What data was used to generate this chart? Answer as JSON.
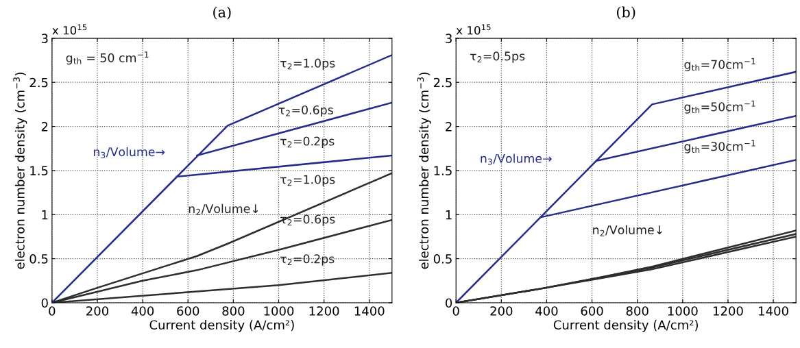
{
  "chart_data": [
    {
      "type": "line",
      "title": "(a)",
      "xlabel": "Current density (A/cm²)",
      "ylabel": "electron number density (cm$^{−3}$)",
      "xlim": [
        0,
        1500
      ],
      "xticks": [
        0,
        200,
        400,
        600,
        800,
        1000,
        1200,
        1400
      ],
      "ylim": [
        0,
        3
      ],
      "yticks": [
        0,
        0.5,
        1,
        1.5,
        2,
        2.5,
        3
      ],
      "grid": true,
      "line_style": "solid",
      "marker": "none",
      "series": [
        {
          "color": "#232c8c",
          "x": [
            0,
            775,
            1500
          ],
          "values": [
            0,
            2.01,
            2.81
          ]
        },
        {
          "color": "#232c8c",
          "x": [
            640,
            1500
          ],
          "values": [
            1.67,
            2.27
          ]
        },
        {
          "color": "#232c8c",
          "x": [
            550,
            1500
          ],
          "values": [
            1.43,
            1.67
          ]
        },
        {
          "color": "#2b2e2b",
          "x": [
            0,
            200,
            640,
            775,
            1500
          ],
          "values": [
            0,
            0.17,
            0.53,
            0.67,
            1.47
          ]
        },
        {
          "color": "#2b2e2b",
          "x": [
            0,
            400,
            640,
            1000,
            1500
          ],
          "values": [
            0,
            0.25,
            0.37,
            0.6,
            0.94
          ]
        },
        {
          "color": "#2b2e2b",
          "x": [
            0,
            550,
            1000,
            1500
          ],
          "values": [
            0,
            0.11,
            0.2,
            0.34
          ]
        }
      ],
      "annotations": [
        "x 10$^{15}$",
        "g$_{th}$ = 50 cm$^{−1}$",
        "τ$_{2}$=1.0ps",
        "τ$_{2}$=0.6ps",
        "τ$_{2}$=0.2ps",
        "τ$_{2}$=1.0ps",
        "τ$_{2}$=0.6ps",
        "τ$_{2}$=0.2ps",
        "n$_{3}$/Volume→",
        "n$_{2}$/Volume↓"
      ]
    },
    {
      "type": "line",
      "title": "(b)",
      "xlabel": "Current density (A/cm²)",
      "ylabel": "electron number density (cm$^{−3}$)",
      "xlim": [
        0,
        1500
      ],
      "xticks": [
        0,
        200,
        400,
        600,
        800,
        1000,
        1200,
        1400
      ],
      "ylim": [
        0,
        3
      ],
      "yticks": [
        0,
        0.5,
        1,
        1.5,
        2,
        2.5,
        3
      ],
      "grid": true,
      "line_style": "solid",
      "marker": "none",
      "series": [
        {
          "color": "#232c8c",
          "x": [
            0,
            865,
            1500
          ],
          "values": [
            0,
            2.25,
            2.62
          ]
        },
        {
          "color": "#232c8c",
          "x": [
            620,
            1500
          ],
          "values": [
            1.61,
            2.12
          ]
        },
        {
          "color": "#232c8c",
          "x": [
            375,
            1500
          ],
          "values": [
            0.97,
            1.62
          ]
        },
        {
          "color": "#2b2e2b",
          "x": [
            0,
            375,
            620,
            865,
            1500
          ],
          "values": [
            0,
            0.16,
            0.27,
            0.38,
            0.75
          ]
        },
        {
          "color": "#2b2e2b",
          "x": [
            0,
            375,
            620,
            865,
            1500
          ],
          "values": [
            0,
            0.16,
            0.28,
            0.4,
            0.78
          ]
        },
        {
          "color": "#2b2e2b",
          "x": [
            0,
            375,
            620,
            865,
            1500
          ],
          "values": [
            0,
            0.16,
            0.28,
            0.41,
            0.82
          ]
        }
      ],
      "annotations": [
        "x 10$^{15}$",
        "τ$_{2}$=0.5ps",
        "g$_{th}$=70cm$^{−1}$",
        "g$_{th}$=50cm$^{−1}$",
        "g$_{th}$=30cm$^{−1}$",
        "n$_{3}$/Volume→",
        "n$_{2}$/Volume↓"
      ]
    }
  ]
}
